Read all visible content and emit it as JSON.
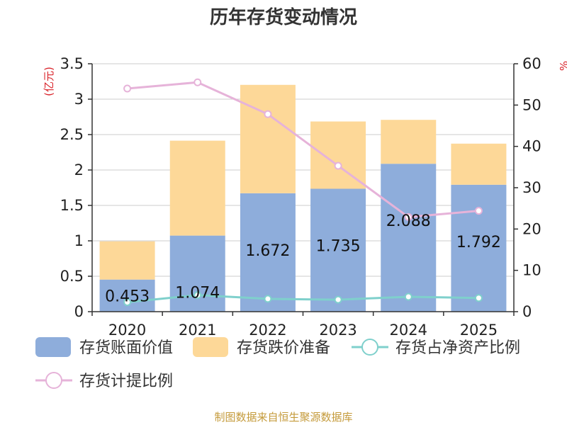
{
  "chart_data": {
    "type": "bar",
    "title": "历年存货变动情况",
    "categories": [
      "2020",
      "2021",
      "2022",
      "2023",
      "2024",
      "2025"
    ],
    "y_left": {
      "unit": "(亿元)",
      "range": [
        0,
        3.5
      ],
      "ticks": [
        "0",
        "0.5",
        "1",
        "1.5",
        "2",
        "2.5",
        "3",
        "3.5"
      ]
    },
    "y_right": {
      "unit": "%",
      "range": [
        0,
        60
      ],
      "ticks": [
        "0",
        "10",
        "20",
        "30",
        "40",
        "50",
        "60"
      ]
    },
    "stack_series": [
      {
        "name": "存货账面价值",
        "color": "#8eaddb",
        "values": [
          0.453,
          1.074,
          1.672,
          1.735,
          2.088,
          1.792
        ],
        "labels": [
          "0.453",
          "1.074",
          "1.672",
          "1.735",
          "2.088",
          "1.792"
        ]
      },
      {
        "name": "存货跌价准备",
        "color": "#fdd898",
        "values": [
          0.54,
          1.34,
          1.53,
          0.95,
          0.62,
          0.58
        ]
      }
    ],
    "line_series": [
      {
        "name": "存货占净资产比例",
        "color": "#7fd0cc",
        "axis": "right",
        "values": [
          2.3,
          4.0,
          3.1,
          2.9,
          3.6,
          3.3
        ]
      },
      {
        "name": "存货计提比例",
        "color": "#e6b3d9",
        "axis": "right",
        "values": [
          54.0,
          55.5,
          47.8,
          35.3,
          22.9,
          24.4
        ]
      }
    ],
    "legend_position": "bottom",
    "grid": true
  },
  "source": "制图数据来自恒生聚源数据库"
}
